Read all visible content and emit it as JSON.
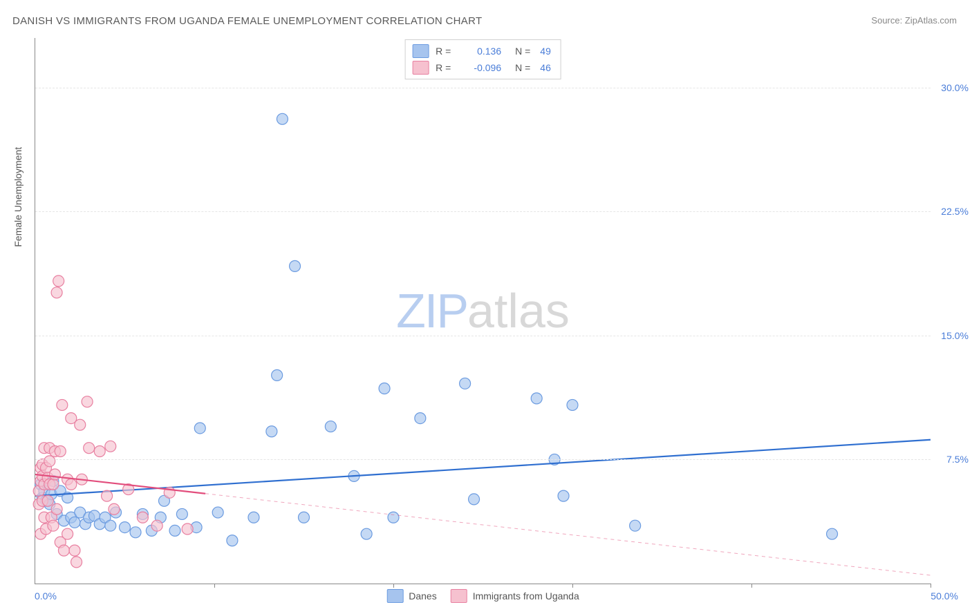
{
  "title": "DANISH VS IMMIGRANTS FROM UGANDA FEMALE UNEMPLOYMENT CORRELATION CHART",
  "source_label": "Source:",
  "source_name": "ZipAtlas.com",
  "yaxis_label": "Female Unemployment",
  "watermark_a": "ZIP",
  "watermark_b": "atlas",
  "chart": {
    "type": "scatter",
    "xlim": [
      0,
      50
    ],
    "ylim": [
      0,
      33
    ],
    "y_ticks": [
      7.5,
      15.0,
      22.5,
      30.0
    ],
    "y_tick_labels": [
      "7.5%",
      "15.0%",
      "22.5%",
      "30.0%"
    ],
    "x_ticks": [
      10,
      20,
      30,
      40,
      50
    ],
    "x_min_label": "0.0%",
    "x_max_label": "50.0%",
    "background_color": "#ffffff",
    "grid_color": "#e5e5e5",
    "axis_color": "#888888",
    "marker_radius": 8,
    "marker_stroke_width": 1.2,
    "series": [
      {
        "name": "Danes",
        "fill": "#a6c4ee",
        "stroke": "#6b9be0",
        "line_color": "#2f6fd0",
        "line_width": 2.2,
        "r_value": "0.136",
        "n_value": "49",
        "trend": {
          "x1": 0,
          "y1": 5.3,
          "x2": 50,
          "y2": 8.7,
          "dash_after_x": null
        },
        "points": [
          [
            0.3,
            6.0
          ],
          [
            0.4,
            5.2
          ],
          [
            0.5,
            5.6
          ],
          [
            0.6,
            5.0
          ],
          [
            0.8,
            4.8
          ],
          [
            0.9,
            5.4
          ],
          [
            1.0,
            6.2
          ],
          [
            1.2,
            4.2
          ],
          [
            1.4,
            5.6
          ],
          [
            1.6,
            3.8
          ],
          [
            1.8,
            5.2
          ],
          [
            2.0,
            4.0
          ],
          [
            2.2,
            3.7
          ],
          [
            2.5,
            4.3
          ],
          [
            2.8,
            3.6
          ],
          [
            3.0,
            4.0
          ],
          [
            3.3,
            4.1
          ],
          [
            3.6,
            3.6
          ],
          [
            3.9,
            4.0
          ],
          [
            4.2,
            3.5
          ],
          [
            4.5,
            4.3
          ],
          [
            5.0,
            3.4
          ],
          [
            5.6,
            3.1
          ],
          [
            6.0,
            4.2
          ],
          [
            6.5,
            3.2
          ],
          [
            7.0,
            4.0
          ],
          [
            7.2,
            5.0
          ],
          [
            7.8,
            3.2
          ],
          [
            8.2,
            4.2
          ],
          [
            9.0,
            3.4
          ],
          [
            9.2,
            9.4
          ],
          [
            10.2,
            4.3
          ],
          [
            11.0,
            2.6
          ],
          [
            12.2,
            4.0
          ],
          [
            13.2,
            9.2
          ],
          [
            13.5,
            12.6
          ],
          [
            13.8,
            28.1
          ],
          [
            14.5,
            19.2
          ],
          [
            15.0,
            4.0
          ],
          [
            16.5,
            9.5
          ],
          [
            17.8,
            6.5
          ],
          [
            18.5,
            3.0
          ],
          [
            19.5,
            11.8
          ],
          [
            20.0,
            4.0
          ],
          [
            21.5,
            10.0
          ],
          [
            24.0,
            12.1
          ],
          [
            24.5,
            5.1
          ],
          [
            28.0,
            11.2
          ],
          [
            29.0,
            7.5
          ],
          [
            29.5,
            5.3
          ],
          [
            30.0,
            10.8
          ],
          [
            33.5,
            3.5
          ],
          [
            44.5,
            3.0
          ]
        ]
      },
      {
        "name": "Immigrants from Uganda",
        "fill": "#f6c1cf",
        "stroke": "#e87fa0",
        "line_color": "#e24d7c",
        "line_width": 2.2,
        "r_value": "-0.096",
        "n_value": "46",
        "trend": {
          "x1": 0,
          "y1": 6.6,
          "x2": 50,
          "y2": 0.5,
          "dash_after_x": 9.5
        },
        "points": [
          [
            0.2,
            4.8
          ],
          [
            0.2,
            5.6
          ],
          [
            0.3,
            6.2
          ],
          [
            0.3,
            7.0
          ],
          [
            0.3,
            3.0
          ],
          [
            0.4,
            6.5
          ],
          [
            0.4,
            7.2
          ],
          [
            0.4,
            5.0
          ],
          [
            0.5,
            8.2
          ],
          [
            0.5,
            6.0
          ],
          [
            0.5,
            4.0
          ],
          [
            0.6,
            7.0
          ],
          [
            0.6,
            3.3
          ],
          [
            0.7,
            6.4
          ],
          [
            0.7,
            5.0
          ],
          [
            0.8,
            8.2
          ],
          [
            0.8,
            7.4
          ],
          [
            0.8,
            6.0
          ],
          [
            0.9,
            4.0
          ],
          [
            1.0,
            6.0
          ],
          [
            1.0,
            3.5
          ],
          [
            1.1,
            8.0
          ],
          [
            1.1,
            6.6
          ],
          [
            1.2,
            4.5
          ],
          [
            1.2,
            17.6
          ],
          [
            1.3,
            18.3
          ],
          [
            1.4,
            8.0
          ],
          [
            1.4,
            2.5
          ],
          [
            1.5,
            10.8
          ],
          [
            1.6,
            2.0
          ],
          [
            1.8,
            6.3
          ],
          [
            1.8,
            3.0
          ],
          [
            2.0,
            10.0
          ],
          [
            2.0,
            6.0
          ],
          [
            2.2,
            2.0
          ],
          [
            2.3,
            1.3
          ],
          [
            2.5,
            9.6
          ],
          [
            2.6,
            6.3
          ],
          [
            2.9,
            11.0
          ],
          [
            3.0,
            8.2
          ],
          [
            3.6,
            8.0
          ],
          [
            4.0,
            5.3
          ],
          [
            4.2,
            8.3
          ],
          [
            4.4,
            4.5
          ],
          [
            5.2,
            5.7
          ],
          [
            6.0,
            4.0
          ],
          [
            6.8,
            3.5
          ],
          [
            7.5,
            5.5
          ],
          [
            8.5,
            3.3
          ]
        ]
      }
    ],
    "top_legend_labels": {
      "r": "R =",
      "n": "N ="
    },
    "bottom_legend": [
      "Danes",
      "Immigrants from Uganda"
    ]
  }
}
